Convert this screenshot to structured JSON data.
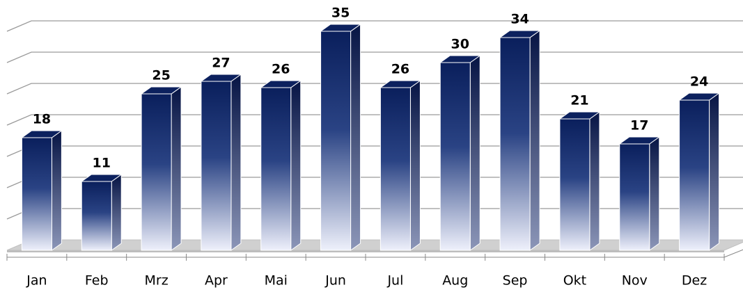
{
  "chart_data": {
    "type": "bar",
    "categories": [
      "Jan",
      "Feb",
      "Mrz",
      "Apr",
      "Mai",
      "Jun",
      "Jul",
      "Aug",
      "Sep",
      "Okt",
      "Nov",
      "Dez"
    ],
    "values": [
      18,
      11,
      25,
      27,
      26,
      35,
      26,
      30,
      34,
      21,
      17,
      24
    ],
    "color": "#0a1f5c",
    "ylim": [
      0,
      35
    ],
    "yticks": [
      0,
      5,
      10,
      15,
      20,
      25,
      30,
      35
    ],
    "grid": true
  }
}
